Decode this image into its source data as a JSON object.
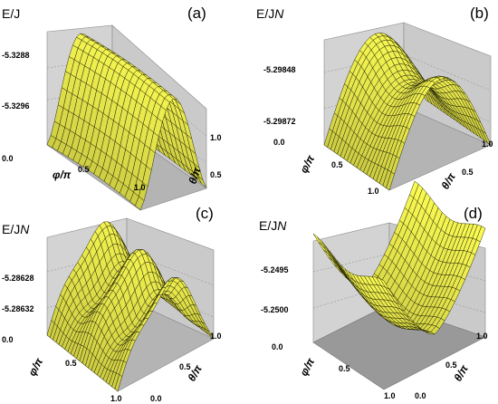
{
  "chart_data": [
    {
      "type": "surface",
      "panel_label": "(a)",
      "zlabel": "E/Jᵎ",
      "zlabel_text": "E/JN",
      "z_ticks": [
        "-5.3288",
        "-5.3296"
      ],
      "x_label": "φ/π",
      "y_label": "θ/π",
      "x_ticks": [
        "0.0",
        "0.5",
        "1.0"
      ],
      "y_ticks": [
        "0.0",
        "0.5",
        "1.0"
      ],
      "surface_color": "#ffff55"
    },
    {
      "type": "surface",
      "panel_label": "(b)",
      "zlabel_text": "E/JN",
      "z_ticks": [
        "-5.29848",
        "-5.29872"
      ],
      "x_label": "φ/π",
      "y_label": "θ/π",
      "x_ticks": [
        "0.0",
        "0.5",
        "1.0"
      ],
      "y_ticks": [
        "0.0",
        "0.5",
        "1.0"
      ],
      "surface_color": "#ffff55"
    },
    {
      "type": "surface",
      "panel_label": "(c)",
      "zlabel_text": "E/JN",
      "z_ticks": [
        "-5.28628",
        "-5.28632"
      ],
      "x_label": "φ/π",
      "y_label": "θ/π",
      "x_ticks": [
        "0.0",
        "0.5",
        "1.0"
      ],
      "y_ticks": [
        "0.0",
        "0.5",
        "1.0"
      ],
      "surface_color": "#ffff55"
    },
    {
      "type": "surface",
      "panel_label": "(d)",
      "zlabel_text": "E/JN",
      "z_ticks": [
        "-5.2495",
        "-5.2500"
      ],
      "x_label": "φ/π",
      "y_label": "θ/π",
      "x_ticks": [
        "0.0",
        "0.5",
        "1.0"
      ],
      "y_ticks": [
        "0.0",
        "0.5",
        "1.0"
      ],
      "surface_color": "#ffff55"
    }
  ]
}
